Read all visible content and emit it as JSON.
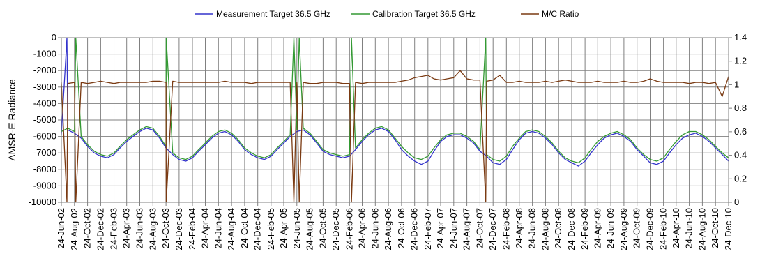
{
  "chart_data": {
    "type": "line",
    "title": "",
    "ylabel": "AMSR-E Radiance",
    "y2label": "",
    "ylim": [
      -10000,
      0
    ],
    "y2lim": [
      0,
      1.4
    ],
    "yticks": [
      0,
      -1000,
      -2000,
      -3000,
      -4000,
      -5000,
      -6000,
      -7000,
      -8000,
      -9000,
      -10000
    ],
    "y2ticks": [
      "1.4",
      "1.2",
      "1",
      "0.8",
      "0.6",
      "0.4",
      "0.2",
      "0"
    ],
    "xlim": [
      "2002-06-24",
      "2010-12-24"
    ],
    "xtick_labels": [
      "24-Jun-02",
      "24-Aug-02",
      "24-Oct-02",
      "24-Dec-02",
      "24-Feb-03",
      "24-Apr-03",
      "24-Jun-03",
      "24-Aug-03",
      "24-Oct-03",
      "24-Dec-03",
      "24-Feb-04",
      "24-Apr-04",
      "24-Jun-04",
      "24-Aug-04",
      "24-Oct-04",
      "24-Dec-04",
      "24-Feb-05",
      "24-Apr-05",
      "24-Jun-05",
      "24-Aug-05",
      "24-Oct-05",
      "24-Dec-05",
      "24-Feb-06",
      "24-Apr-06",
      "24-Jun-06",
      "24-Aug-06",
      "24-Oct-06",
      "24-Dec-06",
      "24-Feb-07",
      "24-Apr-07",
      "24-Jun-07",
      "24-Aug-07",
      "24-Oct-07",
      "24-Dec-07",
      "24-Feb-08",
      "24-Apr-08",
      "24-Jun-08",
      "24-Aug-08",
      "24-Oct-08",
      "24-Dec-08",
      "24-Feb-09",
      "24-Apr-09",
      "24-Jun-09",
      "24-Aug-09",
      "24-Oct-09",
      "24-Dec-09",
      "24-Feb-10",
      "24-Apr-10",
      "24-Jun-10",
      "24-Aug-10",
      "24-Oct-10",
      "24-Dec-10"
    ],
    "grid": true,
    "legend": "top-center",
    "series": [
      {
        "name": "Measurement Target 36.5 GHz",
        "color": "#3333cc",
        "axis": "left",
        "x": [
          "2002-06-24",
          "2002-07-24",
          "2002-08-24",
          "2002-09-24",
          "2002-10-24",
          "2002-11-24",
          "2002-12-24",
          "2003-01-24",
          "2003-02-24",
          "2003-03-24",
          "2003-04-24",
          "2003-05-24",
          "2003-06-24",
          "2003-07-24",
          "2003-08-24",
          "2003-09-24",
          "2003-10-24",
          "2003-11-24",
          "2003-12-24",
          "2004-01-24",
          "2004-02-24",
          "2004-03-24",
          "2004-04-24",
          "2004-05-24",
          "2004-06-24",
          "2004-07-24",
          "2004-08-24",
          "2004-09-24",
          "2004-10-24",
          "2004-11-24",
          "2004-12-24",
          "2005-01-24",
          "2005-02-24",
          "2005-03-24",
          "2005-04-24",
          "2005-05-24",
          "2005-06-24",
          "2005-07-24",
          "2005-08-24",
          "2005-09-24",
          "2005-10-24",
          "2005-11-24",
          "2005-12-24",
          "2006-01-24",
          "2006-02-24",
          "2006-03-24",
          "2006-04-24",
          "2006-05-24",
          "2006-06-24",
          "2006-07-24",
          "2006-08-24",
          "2006-09-24",
          "2006-10-24",
          "2006-11-24",
          "2006-12-24",
          "2007-01-24",
          "2007-02-24",
          "2007-03-24",
          "2007-04-24",
          "2007-05-24",
          "2007-06-24",
          "2007-07-24",
          "2007-08-24",
          "2007-09-24",
          "2007-10-24",
          "2007-11-24",
          "2007-12-24",
          "2008-01-24",
          "2008-02-24",
          "2008-03-24",
          "2008-04-24",
          "2008-05-24",
          "2008-06-24",
          "2008-07-24",
          "2008-08-24",
          "2008-09-24",
          "2008-10-24",
          "2008-11-24",
          "2008-12-24",
          "2009-01-24",
          "2009-02-24",
          "2009-03-24",
          "2009-04-24",
          "2009-05-24",
          "2009-06-24",
          "2009-07-24",
          "2009-08-24",
          "2009-09-24",
          "2009-10-24",
          "2009-11-24",
          "2009-12-24",
          "2010-01-24",
          "2010-02-24",
          "2010-03-24",
          "2010-04-24",
          "2010-05-24",
          "2010-06-24",
          "2010-07-24",
          "2010-08-24",
          "2010-09-24",
          "2010-10-24",
          "2010-11-24",
          "2010-12-24"
        ],
        "values": [
          -5900,
          -5600,
          -5800,
          -6100,
          -6600,
          -7000,
          -7200,
          -7300,
          -7100,
          -6700,
          -6300,
          -6000,
          -5700,
          -5500,
          -5600,
          -6100,
          -6700,
          -7100,
          -7400,
          -7500,
          -7300,
          -6900,
          -6500,
          -6100,
          -5800,
          -5700,
          -5900,
          -6300,
          -6800,
          -7100,
          -7300,
          -7400,
          -7200,
          -6800,
          -6400,
          -6000,
          -5700,
          -5600,
          -5900,
          -6400,
          -6900,
          -7100,
          -7200,
          -7300,
          -7200,
          -6800,
          -6300,
          -5900,
          -5600,
          -5500,
          -5700,
          -6200,
          -6800,
          -7200,
          -7500,
          -7700,
          -7500,
          -6900,
          -6300,
          -6000,
          -5900,
          -5900,
          -6100,
          -6400,
          -6900,
          -7200,
          -7600,
          -7700,
          -7400,
          -6800,
          -6200,
          -5800,
          -5700,
          -5800,
          -6100,
          -6500,
          -7000,
          -7400,
          -7600,
          -7800,
          -7500,
          -7000,
          -6500,
          -6100,
          -5900,
          -5800,
          -6000,
          -6300,
          -6800,
          -7200,
          -7600,
          -7700,
          -7500,
          -7000,
          -6500,
          -6100,
          -5900,
          -5800,
          -6000,
          -6300,
          -6700,
          -7100,
          -7500
        ]
      },
      {
        "name": "Calibration Target 36.5 GHz",
        "color": "#339933",
        "axis": "left",
        "x": [
          "2002-06-24",
          "2002-07-24",
          "2002-08-24",
          "2002-09-24",
          "2002-10-24",
          "2002-11-24",
          "2002-12-24",
          "2003-01-24",
          "2003-02-24",
          "2003-03-24",
          "2003-04-24",
          "2003-05-24",
          "2003-06-24",
          "2003-07-24",
          "2003-08-24",
          "2003-09-24",
          "2003-10-24",
          "2003-11-24",
          "2003-12-24",
          "2004-01-24",
          "2004-02-24",
          "2004-03-24",
          "2004-04-24",
          "2004-05-24",
          "2004-06-24",
          "2004-07-24",
          "2004-08-24",
          "2004-09-24",
          "2004-10-24",
          "2004-11-24",
          "2004-12-24",
          "2005-01-24",
          "2005-02-24",
          "2005-03-24",
          "2005-04-24",
          "2005-05-24",
          "2005-06-24",
          "2005-07-24",
          "2005-08-24",
          "2005-09-24",
          "2005-10-24",
          "2005-11-24",
          "2005-12-24",
          "2006-01-24",
          "2006-02-24",
          "2006-03-24",
          "2006-04-24",
          "2006-05-24",
          "2006-06-24",
          "2006-07-24",
          "2006-08-24",
          "2006-09-24",
          "2006-10-24",
          "2006-11-24",
          "2006-12-24",
          "2007-01-24",
          "2007-02-24",
          "2007-03-24",
          "2007-04-24",
          "2007-05-24",
          "2007-06-24",
          "2007-07-24",
          "2007-08-24",
          "2007-09-24",
          "2007-10-24",
          "2007-11-24",
          "2007-12-24",
          "2008-01-24",
          "2008-02-24",
          "2008-03-24",
          "2008-04-24",
          "2008-05-24",
          "2008-06-24",
          "2008-07-24",
          "2008-08-24",
          "2008-09-24",
          "2008-10-24",
          "2008-11-24",
          "2008-12-24",
          "2009-01-24",
          "2009-02-24",
          "2009-03-24",
          "2009-04-24",
          "2009-05-24",
          "2009-06-24",
          "2009-07-24",
          "2009-08-24",
          "2009-09-24",
          "2009-10-24",
          "2009-11-24",
          "2009-12-24",
          "2010-01-24",
          "2010-02-24",
          "2010-03-24",
          "2010-04-24",
          "2010-05-24",
          "2010-06-24",
          "2010-07-24",
          "2010-08-24",
          "2010-09-24",
          "2010-10-24",
          "2010-11-24",
          "2010-12-24"
        ],
        "values": [
          -5700,
          -5500,
          -5700,
          -6000,
          -6500,
          -6900,
          -7100,
          -7200,
          -7000,
          -6600,
          -6200,
          -5900,
          -5600,
          -5400,
          -5500,
          -6000,
          -6600,
          -7000,
          -7300,
          -7400,
          -7200,
          -6800,
          -6400,
          -6000,
          -5700,
          -5600,
          -5800,
          -6200,
          -6700,
          -7000,
          -7200,
          -7300,
          -7100,
          -6700,
          -6300,
          -5900,
          -5600,
          -5500,
          -5800,
          -6300,
          -6800,
          -7000,
          -7100,
          -7200,
          -7100,
          -6700,
          -6200,
          -5800,
          -5500,
          -5400,
          -5600,
          -6100,
          -6600,
          -7000,
          -7300,
          -7400,
          -7200,
          -6700,
          -6200,
          -5900,
          -5800,
          -5800,
          -6000,
          -6300,
          -6800,
          -7100,
          -7400,
          -7500,
          -7200,
          -6600,
          -6100,
          -5700,
          -5600,
          -5700,
          -6000,
          -6400,
          -6900,
          -7300,
          -7500,
          -7600,
          -7300,
          -6800,
          -6300,
          -6000,
          -5800,
          -5700,
          -5900,
          -6200,
          -6700,
          -7100,
          -7400,
          -7500,
          -7300,
          -6800,
          -6300,
          -5900,
          -5700,
          -5700,
          -5900,
          -6200,
          -6600,
          -7000,
          -7300
        ]
      },
      {
        "name": "M/C Ratio",
        "color": "#7a3a12",
        "axis": "right",
        "x": [
          "2002-06-24",
          "2002-07-24",
          "2002-08-24",
          "2002-09-24",
          "2002-10-24",
          "2002-11-24",
          "2002-12-24",
          "2003-01-24",
          "2003-02-24",
          "2003-03-24",
          "2003-04-24",
          "2003-05-24",
          "2003-06-24",
          "2003-07-24",
          "2003-08-24",
          "2003-09-24",
          "2003-10-24",
          "2003-11-24",
          "2003-12-24",
          "2004-01-24",
          "2004-02-24",
          "2004-03-24",
          "2004-04-24",
          "2004-05-24",
          "2004-06-24",
          "2004-07-24",
          "2004-08-24",
          "2004-09-24",
          "2004-10-24",
          "2004-11-24",
          "2004-12-24",
          "2005-01-24",
          "2005-02-24",
          "2005-03-24",
          "2005-04-24",
          "2005-05-24",
          "2005-06-24",
          "2005-07-24",
          "2005-08-24",
          "2005-09-24",
          "2005-10-24",
          "2005-11-24",
          "2005-12-24",
          "2006-01-24",
          "2006-02-24",
          "2006-03-24",
          "2006-04-24",
          "2006-05-24",
          "2006-06-24",
          "2006-07-24",
          "2006-08-24",
          "2006-09-24",
          "2006-10-24",
          "2006-11-24",
          "2006-12-24",
          "2007-01-24",
          "2007-02-24",
          "2007-03-24",
          "2007-04-24",
          "2007-05-24",
          "2007-06-24",
          "2007-07-24",
          "2007-08-24",
          "2007-09-24",
          "2007-10-24",
          "2007-11-24",
          "2007-12-24",
          "2008-01-24",
          "2008-02-24",
          "2008-03-24",
          "2008-04-24",
          "2008-05-24",
          "2008-06-24",
          "2008-07-24",
          "2008-08-24",
          "2008-09-24",
          "2008-10-24",
          "2008-11-24",
          "2008-12-24",
          "2009-01-24",
          "2009-02-24",
          "2009-03-24",
          "2009-04-24",
          "2009-05-24",
          "2009-06-24",
          "2009-07-24",
          "2009-08-24",
          "2009-09-24",
          "2009-10-24",
          "2009-11-24",
          "2009-12-24",
          "2010-01-24",
          "2010-02-24",
          "2010-03-24",
          "2010-04-24",
          "2010-05-24",
          "2010-06-24",
          "2010-07-24",
          "2010-08-24",
          "2010-09-24",
          "2010-10-24",
          "2010-11-24",
          "2010-12-24"
        ],
        "values": [
          1.02,
          1.01,
          1.02,
          1.02,
          1.01,
          1.02,
          1.03,
          1.02,
          1.01,
          1.02,
          1.02,
          1.02,
          1.02,
          1.02,
          1.03,
          1.03,
          1.02,
          1.03,
          1.02,
          1.02,
          1.02,
          1.02,
          1.02,
          1.02,
          1.02,
          1.03,
          1.02,
          1.02,
          1.02,
          1.01,
          1.02,
          1.02,
          1.02,
          1.02,
          1.02,
          1.02,
          1.02,
          1.02,
          1.01,
          1.01,
          1.02,
          1.02,
          1.02,
          1.01,
          1.01,
          1.02,
          1.01,
          1.02,
          1.02,
          1.02,
          1.02,
          1.02,
          1.03,
          1.04,
          1.06,
          1.07,
          1.08,
          1.05,
          1.04,
          1.05,
          1.06,
          1.12,
          1.05,
          1.04,
          1.04,
          1.03,
          1.04,
          1.08,
          1.02,
          1.02,
          1.03,
          1.02,
          1.02,
          1.02,
          1.03,
          1.02,
          1.03,
          1.04,
          1.03,
          1.02,
          1.02,
          1.02,
          1.03,
          1.02,
          1.02,
          1.02,
          1.03,
          1.02,
          1.02,
          1.03,
          1.05,
          1.03,
          1.02,
          1.02,
          1.02,
          1.02,
          1.01,
          1.02,
          1.02,
          1.01,
          1.02,
          0.9,
          1.07
        ]
      }
    ],
    "spikes": [
      {
        "date": "2002-07-20",
        "series": "Measurement Target 36.5 GHz",
        "value": 0
      },
      {
        "date": "2002-07-20",
        "series": "M/C Ratio",
        "value": 0
      },
      {
        "date": "2002-08-30",
        "series": "Calibration Target 36.5 GHz",
        "value": 0
      },
      {
        "date": "2002-08-30",
        "series": "M/C Ratio",
        "value": 0
      },
      {
        "date": "2003-10-25",
        "series": "Calibration Target 36.5 GHz",
        "value": 0
      },
      {
        "date": "2003-10-25",
        "series": "M/C Ratio",
        "value": 0
      },
      {
        "date": "2005-06-10",
        "series": "Calibration Target 36.5 GHz",
        "value": 0
      },
      {
        "date": "2005-06-10",
        "series": "M/C Ratio",
        "value": 0
      },
      {
        "date": "2005-07-05",
        "series": "Calibration Target 36.5 GHz",
        "value": 0
      },
      {
        "date": "2005-07-05",
        "series": "M/C Ratio",
        "value": 0
      },
      {
        "date": "2006-03-05",
        "series": "Calibration Target 36.5 GHz",
        "value": 0
      },
      {
        "date": "2006-03-05",
        "series": "M/C Ratio",
        "value": 0
      },
      {
        "date": "2007-11-20",
        "series": "Calibration Target 36.5 GHz",
        "value": 0
      },
      {
        "date": "2007-11-20",
        "series": "M/C Ratio",
        "value": 0
      }
    ]
  }
}
